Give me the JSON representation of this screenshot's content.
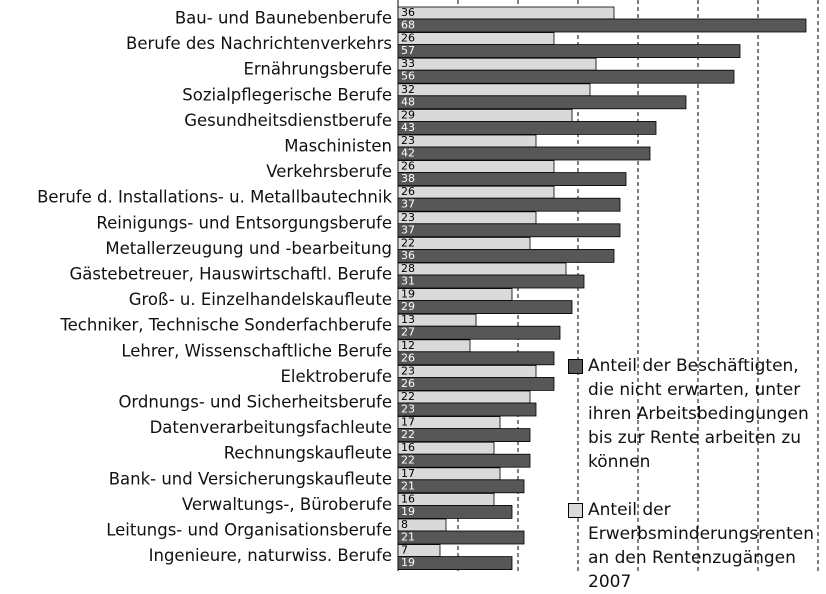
{
  "chart_data": {
    "type": "bar",
    "orientation": "horizontal",
    "categories": [
      "Bau- und Baunebenberufe",
      "Berufe des Nachrichtenverkehrs",
      "Ernährungsberufe",
      "Sozialpflegerische Berufe",
      "Gesundheitsdienstberufe",
      "Maschinisten",
      "Verkehrsberufe",
      "Berufe d. Installations- u. Metallbautechnik",
      "Reinigungs- und Entsorgungsberufe",
      "Metallerzeugung und -bearbeitung",
      "Gästebetreuer, Hauswirtschaftl. Berufe",
      "Groß- u. Einzelhandelskaufleute",
      "Techniker, Technische Sonderfachberufe",
      "Lehrer, Wissenschaftliche Berufe",
      "Elektroberufe",
      "Ordnungs- und Sicherheitsberufe",
      "Datenverarbeitungsfachleute",
      "Rechnungskaufleute",
      "Bank- und Versicherungskaufleute",
      "Verwaltungs-, Büroberufe",
      "Leitungs- und Organisationsberufe",
      "Ingenieure, naturwiss. Berufe"
    ],
    "series": [
      {
        "name": "Anteil der Erwerbsminderungsrenten an den Rentenzugängen 2007",
        "color": "#d9d9d9",
        "values": [
          36,
          26,
          33,
          32,
          29,
          23,
          26,
          26,
          23,
          22,
          28,
          19,
          13,
          12,
          23,
          22,
          17,
          16,
          17,
          16,
          8,
          7
        ]
      },
      {
        "name": "Anteil der Beschäftigten, die nicht erwarten, unter ihren Arbeitsbedingungen bis zur Rente arbeiten zu können",
        "color": "#575757",
        "values": [
          68,
          57,
          56,
          48,
          43,
          42,
          38,
          37,
          37,
          36,
          31,
          29,
          27,
          26,
          26,
          23,
          22,
          22,
          21,
          19,
          21,
          19
        ]
      }
    ],
    "xlim": [
      0,
      70
    ],
    "xticks": [
      0,
      10,
      20,
      30,
      40,
      50,
      60,
      70
    ],
    "grid": true
  }
}
